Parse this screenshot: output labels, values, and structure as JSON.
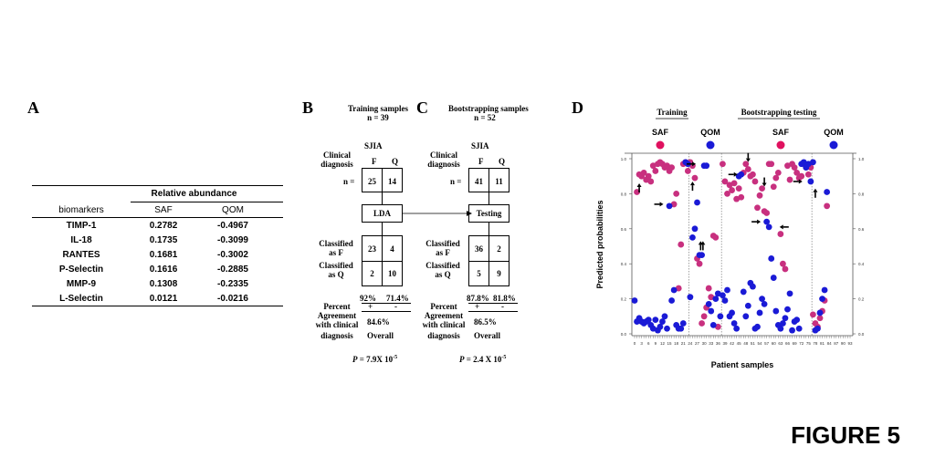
{
  "figure_label": "FIGURE 5",
  "panelA": {
    "letter": "A",
    "header": "Relative abundance",
    "columns": [
      "biomarkers",
      "SAF",
      "QOM"
    ],
    "rows": [
      [
        "TIMP-1",
        "0.2782",
        "-0.4967"
      ],
      [
        "IL-18",
        "0.1735",
        "-0.3099"
      ],
      [
        "RANTES",
        "0.1681",
        "-0.3002"
      ],
      [
        "P-Selectin",
        "0.1616",
        "-0.2885"
      ],
      [
        "MMP-9",
        "0.1308",
        "-0.2335"
      ],
      [
        "L-Selectin",
        "0.0121",
        "-0.0216"
      ]
    ]
  },
  "panelB": {
    "letter": "B",
    "title": "Training samples",
    "n": "n = 39",
    "sjia": "SJIA",
    "clinical1": "Clinical",
    "clinical2": "diagnosis",
    "F": "F",
    "Q": "Q",
    "n_eq": "n =",
    "counts": [
      "25",
      "14"
    ],
    "method": "LDA",
    "classF1": "Classified",
    "classF2": "as F",
    "classQ1": "Classified",
    "classQ2": "as Q",
    "matrix": [
      "23",
      "4",
      "2",
      "10"
    ],
    "pct_plus": "92%",
    "pct_minus": "71.4%",
    "plus": "+",
    "minus": "-",
    "percent": "Percent",
    "agreement": "Agreement",
    "withclin": "with clinical",
    "diag": "diagnosis",
    "overall_pct": "84.6%",
    "overall": "Overall",
    "p_label": "P",
    "p_value": "= 7.9X 10",
    "p_exp": "-5"
  },
  "panelC": {
    "letter": "C",
    "title": "Bootstrapping samples",
    "n": "n = 52",
    "sjia": "SJIA",
    "clinical1": "Clinical",
    "clinical2": "diagnosis",
    "F": "F",
    "Q": "Q",
    "n_eq": "n =",
    "counts": [
      "41",
      "11"
    ],
    "method": "Testing",
    "classF1": "Classified",
    "classF2": "as F",
    "classQ1": "Classified",
    "classQ2": "as Q",
    "matrix": [
      "36",
      "2",
      "5",
      "9"
    ],
    "pct_plus": "87.8%",
    "pct_minus": "81.8%",
    "plus": "+",
    "minus": "-",
    "percent": "Percent",
    "agreement": "Agreement",
    "withclin": "with clinical",
    "diag": "diagnosis",
    "overall_pct": "86.5%",
    "overall": "Overall",
    "p_label": "P",
    "p_value": "= 2.4 X 10",
    "p_exp": "-5"
  },
  "panelD": {
    "letter": "D",
    "group_training": "Training",
    "group_boot": "Bootstrapping testing",
    "legend": [
      {
        "label": "SAF",
        "color": "#e0115f"
      },
      {
        "label": "QOM",
        "color": "#1a1ad6"
      },
      {
        "label": "SAF",
        "color": "#e0115f"
      },
      {
        "label": "QOM",
        "color": "#1a1ad6"
      }
    ],
    "ylabel": "Predicted probabilities",
    "xlabel": "Patient samples",
    "yticks": [
      "0.0",
      "0.2",
      "0.4",
      "0.6",
      "0.8",
      "1.0"
    ],
    "xticks": [
      "0",
      "3",
      "6",
      "9",
      "12",
      "15",
      "18",
      "21",
      "24",
      "27",
      "30",
      "33",
      "36",
      "39",
      "42",
      "45",
      "48",
      "51",
      "54",
      "57",
      "60",
      "63",
      "66",
      "69",
      "72",
      "75",
      "78",
      "81",
      "84",
      "87",
      "90",
      "93"
    ]
  },
  "chart_data": {
    "type": "scatter",
    "xlabel": "Patient samples",
    "ylabel": "Predicted probabilities",
    "ylim": [
      0,
      1
    ],
    "xlim": [
      0,
      93
    ],
    "colors": {
      "saf": "#c8307f",
      "qom": "#1a1ad6"
    },
    "series": [
      {
        "name": "SAF",
        "points": [
          [
            1,
            0.81
          ],
          [
            2,
            0.91
          ],
          [
            3,
            0.9
          ],
          [
            4,
            0.92
          ],
          [
            5,
            0.88
          ],
          [
            6,
            0.9
          ],
          [
            7,
            0.87
          ],
          [
            8,
            0.96
          ],
          [
            9,
            0.93
          ],
          [
            10,
            0.97
          ],
          [
            11,
            0.98
          ],
          [
            12,
            0.97
          ],
          [
            13,
            0.95
          ],
          [
            14,
            0.96
          ],
          [
            15,
            0.93
          ],
          [
            16,
            0.95
          ],
          [
            17,
            0.74
          ],
          [
            18,
            0.8
          ],
          [
            19,
            0.26
          ],
          [
            20,
            0.51
          ],
          [
            21,
            0.97
          ],
          [
            22,
            0.98
          ],
          [
            23,
            0.93
          ],
          [
            24,
            0.98
          ],
          [
            25,
            0.96
          ],
          [
            26,
            0.89
          ],
          [
            27,
            0.43
          ],
          [
            28,
            0.4
          ],
          [
            29,
            0.06
          ],
          [
            30,
            0.1
          ],
          [
            31,
            0.15
          ],
          [
            32,
            0.26
          ],
          [
            33,
            0.21
          ],
          [
            34,
            0.56
          ],
          [
            35,
            0.55
          ],
          [
            36,
            0.04
          ],
          [
            38,
            0.97
          ],
          [
            39,
            0.87
          ],
          [
            40,
            0.8
          ],
          [
            41,
            0.85
          ],
          [
            42,
            0.82
          ],
          [
            43,
            0.86
          ],
          [
            44,
            0.77
          ],
          [
            45,
            0.83
          ],
          [
            46,
            0.78
          ],
          [
            47,
            0.92
          ],
          [
            48,
            0.97
          ],
          [
            49,
            0.94
          ],
          [
            50,
            0.9
          ],
          [
            51,
            0.91
          ],
          [
            52,
            0.87
          ],
          [
            53,
            0.72
          ],
          [
            54,
            0.79
          ],
          [
            55,
            0.83
          ],
          [
            56,
            0.7
          ],
          [
            57,
            0.69
          ],
          [
            58,
            0.97
          ],
          [
            59,
            0.97
          ],
          [
            60,
            0.84
          ],
          [
            61,
            0.89
          ],
          [
            62,
            0.92
          ],
          [
            63,
            0.57
          ],
          [
            64,
            0.4
          ],
          [
            65,
            0.37
          ],
          [
            66,
            0.96
          ],
          [
            67,
            0.88
          ],
          [
            68,
            0.97
          ],
          [
            69,
            0.95
          ],
          [
            70,
            0.92
          ],
          [
            71,
            0.89
          ],
          [
            72,
            0.9
          ],
          [
            73,
            0.97
          ],
          [
            74,
            0.95
          ],
          [
            75,
            0.91
          ],
          [
            76,
            0.95
          ],
          [
            77,
            0.11
          ],
          [
            78,
            0.06
          ],
          [
            79,
            0.04
          ],
          [
            80,
            0.09
          ],
          [
            81,
            0.13
          ],
          [
            82,
            0.19
          ],
          [
            83,
            0.73
          ]
        ]
      },
      {
        "name": "QOM",
        "points": [
          [
            0,
            0.19
          ],
          [
            1,
            0.07
          ],
          [
            2,
            0.09
          ],
          [
            3,
            0.07
          ],
          [
            4,
            0.06
          ],
          [
            5,
            0.07
          ],
          [
            6,
            0.08
          ],
          [
            7,
            0.05
          ],
          [
            8,
            0.03
          ],
          [
            9,
            0.08
          ],
          [
            10,
            0.02
          ],
          [
            11,
            0.04
          ],
          [
            12,
            0.07
          ],
          [
            13,
            0.1
          ],
          [
            14,
            0.03
          ],
          [
            15,
            0.73
          ],
          [
            16,
            0.19
          ],
          [
            17,
            0.25
          ],
          [
            18,
            0.05
          ],
          [
            19,
            0.03
          ],
          [
            20,
            0.03
          ],
          [
            21,
            0.06
          ],
          [
            22,
            0.98
          ],
          [
            23,
            0.97
          ],
          [
            24,
            0.21
          ],
          [
            25,
            0.55
          ],
          [
            26,
            0.6
          ],
          [
            27,
            0.75
          ],
          [
            28,
            0.45
          ],
          [
            29,
            0.45
          ],
          [
            30,
            0.96
          ],
          [
            31,
            0.96
          ],
          [
            32,
            0.17
          ],
          [
            33,
            0.13
          ],
          [
            34,
            0.05
          ],
          [
            35,
            0.2
          ],
          [
            36,
            0.23
          ],
          [
            37,
            0.1
          ],
          [
            38,
            0.22
          ],
          [
            39,
            0.19
          ],
          [
            40,
            0.25
          ],
          [
            41,
            0.1
          ],
          [
            42,
            0.12
          ],
          [
            43,
            0.06
          ],
          [
            44,
            0.03
          ],
          [
            45,
            0.9
          ],
          [
            46,
            0.91
          ],
          [
            47,
            0.24
          ],
          [
            48,
            0.1
          ],
          [
            49,
            0.16
          ],
          [
            50,
            0.29
          ],
          [
            51,
            0.27
          ],
          [
            52,
            0.03
          ],
          [
            53,
            0.04
          ],
          [
            54,
            0.12
          ],
          [
            55,
            0.2
          ],
          [
            56,
            0.17
          ],
          [
            57,
            0.64
          ],
          [
            58,
            0.61
          ],
          [
            59,
            0.43
          ],
          [
            60,
            0.32
          ],
          [
            61,
            0.13
          ],
          [
            62,
            0.05
          ],
          [
            63,
            0.03
          ],
          [
            64,
            0.06
          ],
          [
            65,
            0.09
          ],
          [
            66,
            0.14
          ],
          [
            67,
            0.23
          ],
          [
            68,
            0.02
          ],
          [
            69,
            0.07
          ],
          [
            70,
            0.08
          ],
          [
            71,
            0.03
          ],
          [
            72,
            0.97
          ],
          [
            73,
            0.98
          ],
          [
            74,
            0.95
          ],
          [
            75,
            0.97
          ],
          [
            76,
            0.87
          ],
          [
            77,
            0.98
          ],
          [
            78,
            0.02
          ],
          [
            79,
            0.03
          ],
          [
            80,
            0.12
          ],
          [
            81,
            0.2
          ],
          [
            82,
            0.25
          ],
          [
            83,
            0.81
          ]
        ]
      }
    ]
  }
}
